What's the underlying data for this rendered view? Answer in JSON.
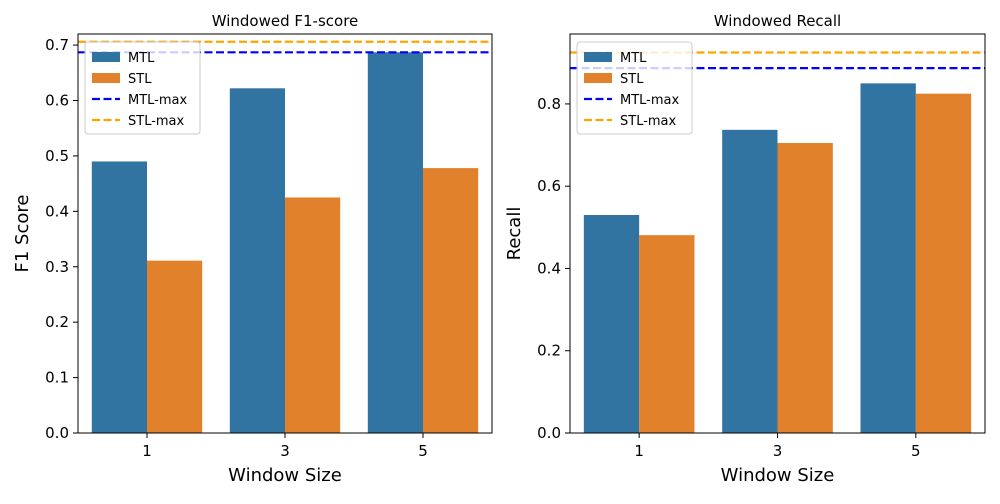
{
  "chart_data": [
    {
      "type": "bar",
      "title": "Windowed F1-score",
      "xlabel": "Window Size",
      "ylabel": "F1 Score",
      "categories": [
        "1",
        "3",
        "5"
      ],
      "series": [
        {
          "name": "MTL",
          "values": [
            0.49,
            0.622,
            0.687
          ],
          "color": "#3274a1"
        },
        {
          "name": "STL",
          "values": [
            0.311,
            0.425,
            0.478
          ],
          "color": "#e1812c"
        }
      ],
      "reference_lines": [
        {
          "name": "MTL-max",
          "value": 0.687,
          "color": "#0000ff",
          "style": "dashed"
        },
        {
          "name": "STL-max",
          "value": 0.706,
          "color": "#ffa500",
          "style": "dashed"
        }
      ],
      "ylim": [
        0,
        0.72
      ],
      "yticks": [
        "0.0",
        "0.1",
        "0.2",
        "0.3",
        "0.4",
        "0.5",
        "0.6",
        "0.7"
      ],
      "legend": "top-left",
      "grid": false
    },
    {
      "type": "bar",
      "title": "Windowed Recall",
      "xlabel": "Window Size",
      "ylabel": "Recall",
      "categories": [
        "1",
        "3",
        "5"
      ],
      "series": [
        {
          "name": "MTL",
          "values": [
            0.53,
            0.737,
            0.85
          ],
          "color": "#3274a1"
        },
        {
          "name": "STL",
          "values": [
            0.481,
            0.705,
            0.825
          ],
          "color": "#e1812c"
        }
      ],
      "reference_lines": [
        {
          "name": "MTL-max",
          "value": 0.887,
          "color": "#0000ff",
          "style": "dashed"
        },
        {
          "name": "STL-max",
          "value": 0.925,
          "color": "#ffa500",
          "style": "dashed"
        }
      ],
      "ylim": [
        0,
        0.97
      ],
      "yticks": [
        "0.0",
        "0.2",
        "0.4",
        "0.6",
        "0.8"
      ],
      "legend": "top-left",
      "grid": false
    }
  ]
}
